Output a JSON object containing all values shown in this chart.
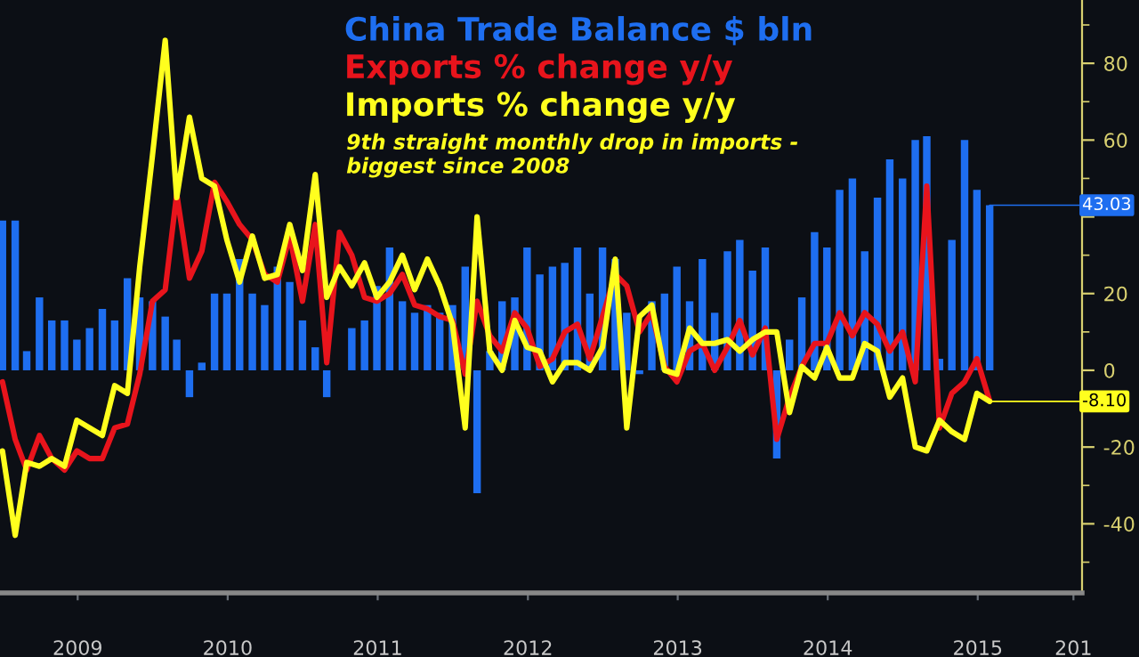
{
  "chart_data": {
    "type": "bar",
    "x": [
      "2008-12-31",
      "2009-01-31",
      "2009-02-28",
      "2009-03-31",
      "2009-04-30",
      "2009-05-31",
      "2009-06-30",
      "2009-07-31",
      "2009-08-31",
      "2009-09-30",
      "2009-10-31",
      "2009-11-30",
      "2009-12-31",
      "2010-01-31",
      "2010-02-28",
      "2010-03-31",
      "2010-04-30",
      "2010-05-31",
      "2010-06-30",
      "2010-07-31",
      "2010-08-31",
      "2010-09-30",
      "2010-10-31",
      "2010-11-30",
      "2010-12-31",
      "2011-01-31",
      "2011-02-28",
      "2011-03-31",
      "2011-04-30",
      "2011-05-31",
      "2011-06-30",
      "2011-07-31",
      "2011-08-31",
      "2011-09-30",
      "2011-10-31",
      "2011-11-30",
      "2011-12-31",
      "2012-01-31",
      "2012-02-29",
      "2012-03-31",
      "2012-04-30",
      "2012-05-31",
      "2012-06-30",
      "2012-07-31",
      "2012-08-31",
      "2012-09-30",
      "2012-10-31",
      "2012-11-30",
      "2012-12-31",
      "2013-01-31",
      "2013-02-28",
      "2013-03-31",
      "2013-04-30",
      "2013-05-31",
      "2013-06-30",
      "2013-07-31",
      "2013-08-31",
      "2013-09-30",
      "2013-10-31",
      "2013-11-30",
      "2013-12-31",
      "2014-01-31",
      "2014-02-28",
      "2014-03-31",
      "2014-04-30",
      "2014-05-31",
      "2014-06-30",
      "2014-07-31",
      "2014-08-31",
      "2014-09-30",
      "2014-10-31",
      "2014-11-30",
      "2014-12-31",
      "2015-01-31",
      "2015-02-28",
      "2015-03-31",
      "2015-04-30",
      "2015-05-31",
      "2015-06-30",
      "2015-07-31"
    ],
    "series": [
      {
        "name": "China Trade Balance $ bln",
        "value_labels": [
          null,
          null,
          null,
          null,
          null,
          null,
          null,
          null,
          null,
          null,
          null,
          null,
          null,
          null,
          null,
          null,
          null,
          null,
          null,
          null,
          null,
          null,
          null,
          null,
          null,
          null,
          null,
          null,
          null,
          null,
          null,
          null,
          null,
          null,
          null,
          null,
          null,
          null,
          null,
          null,
          null,
          null,
          null,
          null,
          null,
          null,
          null,
          null,
          null,
          null,
          null,
          null,
          null,
          null,
          null,
          null,
          null,
          null,
          null,
          null,
          null,
          null,
          null,
          null,
          null,
          null,
          null,
          null,
          null,
          null,
          null,
          null,
          null,
          null,
          null,
          null,
          null,
          null,
          null,
          "43.03"
        ],
        "color": "#1e6ef0",
        "values": [
          39,
          39,
          5,
          19,
          13,
          13,
          8,
          11,
          16,
          13,
          24,
          19,
          18,
          14,
          8,
          -7,
          2,
          20,
          20,
          29,
          20,
          17,
          27,
          23,
          13,
          6,
          -7,
          0,
          11,
          13,
          22,
          32,
          18,
          15,
          17,
          15,
          17,
          27,
          -32,
          5,
          18,
          19,
          32,
          25,
          27,
          28,
          32,
          20,
          32,
          29,
          15,
          -1,
          18,
          20,
          27,
          18,
          29,
          15,
          31,
          34,
          26,
          32,
          -23,
          8,
          19,
          36,
          32,
          47,
          50,
          31,
          45,
          55,
          50,
          60,
          61,
          3,
          34,
          60,
          47,
          43.03
        ]
      },
      {
        "name": "Exports % change y/y",
        "type": "line",
        "color": "#e8141c",
        "values": [
          -3,
          -18,
          -26,
          -17,
          -23,
          -26,
          -21,
          -23,
          -23,
          -15,
          -14,
          -1,
          18,
          21,
          46,
          24,
          31,
          49,
          44,
          38,
          34,
          25,
          23,
          35,
          18,
          38,
          2,
          36,
          30,
          19,
          18,
          20,
          25,
          17,
          16,
          14,
          13,
          -1,
          18,
          9,
          5,
          15,
          11,
          1,
          3,
          10,
          12,
          3,
          14,
          25,
          22,
          10,
          15,
          1,
          -3,
          5,
          7,
          0,
          6,
          13,
          4,
          11,
          -18,
          -7,
          1,
          7,
          7,
          15,
          9,
          15,
          12,
          5,
          10,
          -3,
          48,
          -15,
          -6,
          -3,
          3,
          -8
        ]
      },
      {
        "name": "Imports % change y/y",
        "type": "line",
        "value_labels": [
          null,
          null,
          null,
          null,
          null,
          null,
          null,
          null,
          null,
          null,
          null,
          null,
          null,
          null,
          null,
          null,
          null,
          null,
          null,
          null,
          null,
          null,
          null,
          null,
          null,
          null,
          null,
          null,
          null,
          null,
          null,
          null,
          null,
          null,
          null,
          null,
          null,
          null,
          null,
          null,
          null,
          null,
          null,
          null,
          null,
          null,
          null,
          null,
          null,
          null,
          null,
          null,
          null,
          null,
          null,
          null,
          null,
          null,
          null,
          null,
          null,
          null,
          null,
          null,
          null,
          null,
          null,
          null,
          null,
          null,
          null,
          null,
          null,
          null,
          null,
          null,
          null,
          null,
          null,
          "-8.10"
        ],
        "color": "#ffff1e",
        "values": [
          -21,
          -43,
          -24,
          -25,
          -23,
          -25,
          -13,
          -15,
          -17,
          -4,
          -6,
          27,
          56,
          86,
          45,
          66,
          50,
          48,
          34,
          23,
          35,
          24,
          25,
          38,
          26,
          51,
          19,
          27,
          22,
          28,
          19,
          23,
          30,
          21,
          29,
          22,
          12,
          -15,
          40,
          5,
          0,
          13,
          6,
          5,
          -3,
          2,
          2,
          0,
          6,
          29,
          -15,
          14,
          17,
          0,
          -1,
          11,
          7,
          7,
          8,
          5,
          8,
          10,
          10,
          -11,
          1,
          -2,
          6,
          -2,
          -2,
          7,
          5,
          -7,
          -2,
          -20,
          -21,
          -13,
          -16,
          -18,
          -6,
          -8.1
        ]
      }
    ],
    "xlim": [
      "2008-12-25",
      "2016-03-12"
    ],
    "xticks": [
      {
        "value": "2009-07-02",
        "label": "2009"
      },
      {
        "value": "2010-07-02",
        "label": "2010"
      },
      {
        "value": "2011-07-02",
        "label": "2011"
      },
      {
        "value": "2012-07-02",
        "label": "2012"
      },
      {
        "value": "2013-07-02",
        "label": "2013"
      },
      {
        "value": "2014-07-02",
        "label": "2014"
      },
      {
        "value": "2015-07-02",
        "label": "2015"
      },
      {
        "value": "2016-02-20",
        "label": "201"
      }
    ],
    "ylim": [
      -58,
      96.5
    ],
    "yticks": [
      -40,
      -20,
      0,
      20,
      {
        "value": 40,
        "label": null
      },
      60,
      80
    ],
    "legend": "top",
    "grid": false,
    "annotations": [
      "9th straight monthly drop in imports -\nbiggest since 2008"
    ]
  }
}
